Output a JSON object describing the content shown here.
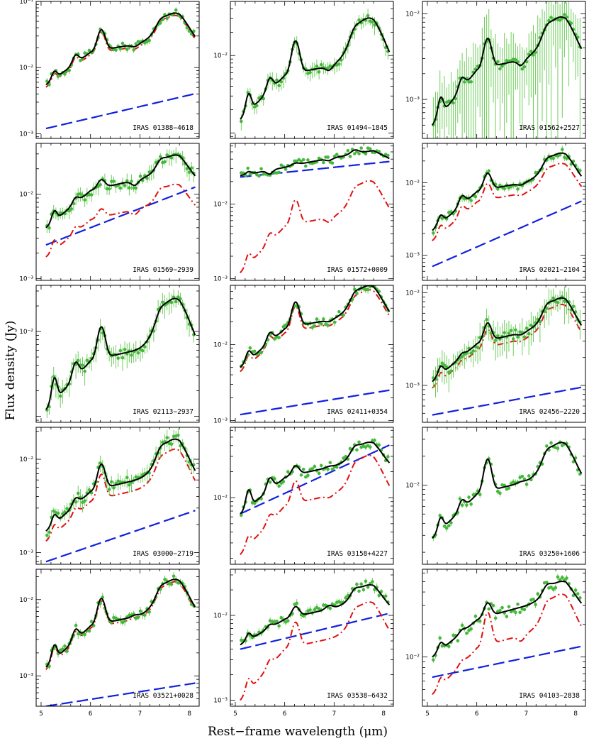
{
  "figure": {
    "ylabel": "Flux density (Jy)",
    "xlabel": "Rest−frame wavelength (μm)",
    "x_ticks": [
      "5",
      "6",
      "7",
      "8"
    ],
    "colors": {
      "data": "#44b83a",
      "total_model": "#000000",
      "pah_component": "#e01010",
      "continuum_component": "#1020e0"
    }
  },
  "chart_data": [
    {
      "type": "line",
      "label": "IRAS 01388−4618",
      "xlim": [
        4.9,
        8.2
      ],
      "ylim": [
        0.00085,
        0.1
      ],
      "yticks": [
        {
          "v": 0.001,
          "t": "10⁻³"
        },
        {
          "v": 0.01,
          "t": "10⁻²"
        },
        {
          "v": 0.1,
          "t": "10⁻¹"
        }
      ],
      "peaks": {
        "base": 0.014,
        "p62": 0.036,
        "p77": 0.065,
        "f52": 0.0075,
        "f57": 0.011,
        "start": 0.0055,
        "dip": 0.017
      },
      "err": 0.08,
      "has_pah": true,
      "pah_scale": 0.92,
      "cont": [
        0.0012,
        0.004
      ]
    },
    {
      "type": "line",
      "label": "IRAS 01494−1845",
      "xlim": [
        4.9,
        8.2
      ],
      "ylim": [
        0.00085,
        0.05
      ],
      "yticks": [
        {
          "v": 0.01,
          "t": "10⁻²"
        }
      ],
      "peaks": {
        "base": 0.004,
        "p62": 0.015,
        "p77": 0.03,
        "f52": 0.0028,
        "f57": 0.0035,
        "start": 0.0015,
        "dip": 0.0055
      },
      "err": 0.18,
      "has_pah": false,
      "cont": null
    },
    {
      "type": "line",
      "label": "IRAS 01562+2527",
      "xlim": [
        4.9,
        8.2
      ],
      "ylim": [
        0.00035,
        0.014
      ],
      "yticks": [
        {
          "v": 0.001,
          "t": "10⁻³"
        },
        {
          "v": 0.01,
          "t": "10⁻²"
        }
      ],
      "peaks": {
        "base": 0.0015,
        "p62": 0.005,
        "p77": 0.009,
        "f52": 0.0009,
        "f57": 0.0011,
        "start": 0.0005,
        "dip": 0.0022
      },
      "err": 0.9,
      "has_pah": false,
      "cont": null
    },
    {
      "type": "line",
      "label": "IRAS 01569−2939",
      "xlim": [
        4.9,
        8.2
      ],
      "ylim": [
        0.00095,
        0.04
      ],
      "yticks": [
        {
          "v": 0.001,
          "t": "10⁻³"
        },
        {
          "v": 0.01,
          "t": "10⁻²"
        }
      ],
      "peaks": {
        "base": 0.008,
        "p62": 0.014,
        "p77": 0.028,
        "f52": 0.0055,
        "f57": 0.0065,
        "start": 0.004,
        "dip": 0.011
      },
      "err": 0.15,
      "has_pah": true,
      "pah_scale": 0.45,
      "cont": [
        0.0025,
        0.012
      ]
    },
    {
      "type": "line",
      "label": "IRAS 01572+0009",
      "xlim": [
        4.9,
        8.2
      ],
      "ylim": [
        0.00095,
        0.065
      ],
      "yticks": [
        {
          "v": 0.001,
          "t": "10⁻³"
        },
        {
          "v": 0.01,
          "t": "10⁻²"
        }
      ],
      "peaks": {
        "base": 0.027,
        "p62": 0.033,
        "p77": 0.048,
        "f52": 0.026,
        "f57": 0.028,
        "start": 0.024,
        "dip": 0.031
      },
      "err": 0.03,
      "has_pah": true,
      "pah_scale": "custom",
      "pah": {
        "base": 0.0035,
        "p62": 0.011,
        "p77": 0.02,
        "f52": 0.0018,
        "f57": 0.0025,
        "start": 0.0012,
        "dip": 0.005
      },
      "cont": [
        0.023,
        0.037
      ]
    },
    {
      "type": "line",
      "label": "IRAS 02021−2104",
      "xlim": [
        4.9,
        8.2
      ],
      "ylim": [
        0.00045,
        0.035
      ],
      "yticks": [
        {
          "v": 0.001,
          "t": "10⁻³"
        },
        {
          "v": 0.01,
          "t": "10⁻²"
        }
      ],
      "peaks": {
        "base": 0.0065,
        "p62": 0.013,
        "p77": 0.025,
        "f52": 0.003,
        "f57": 0.0045,
        "start": 0.0022,
        "dip": 0.0075
      },
      "err": 0.1,
      "has_pah": true,
      "pah_scale": 0.72,
      "cont": [
        0.0007,
        0.0055
      ]
    },
    {
      "type": "line",
      "label": "IRAS 02113−2937",
      "xlim": [
        4.9,
        8.2
      ],
      "ylim": [
        0.00085,
        0.035
      ],
      "yticks": [
        {
          "v": 0.01,
          "t": "10⁻²"
        }
      ],
      "peaks": {
        "base": 0.0045,
        "p62": 0.011,
        "p77": 0.024,
        "f52": 0.0025,
        "f57": 0.003,
        "start": 0.0012,
        "dip": 0.0045
      },
      "err": 0.22,
      "has_pah": false,
      "cont": null
    },
    {
      "type": "line",
      "label": "IRAS 02411+0354",
      "xlim": [
        4.9,
        8.2
      ],
      "ylim": [
        0.00095,
        0.06
      ],
      "yticks": [
        {
          "v": 0.001,
          "t": "10⁻³"
        },
        {
          "v": 0.01,
          "t": "10⁻²"
        }
      ],
      "peaks": {
        "base": 0.014,
        "p62": 0.035,
        "p77": 0.058,
        "f52": 0.007,
        "f57": 0.01,
        "start": 0.005,
        "dip": 0.016
      },
      "err": 0.08,
      "has_pah": true,
      "pah_scale": 0.88,
      "cont": [
        0.0012,
        0.0025
      ]
    },
    {
      "type": "line",
      "label": "IRAS 02456−2220",
      "xlim": [
        4.9,
        8.2
      ],
      "ylim": [
        0.0004,
        0.012
      ],
      "yticks": [
        {
          "v": 0.001,
          "t": "10⁻³"
        },
        {
          "v": 0.01,
          "t": "10⁻²"
        }
      ],
      "peaks": {
        "base": 0.0025,
        "p62": 0.0045,
        "p77": 0.0085,
        "f52": 0.0014,
        "f57": 0.0016,
        "start": 0.0011,
        "dip": 0.0028
      },
      "err": 0.3,
      "has_pah": true,
      "pah_scale": 0.85,
      "cont": [
        0.00048,
        0.00095
      ]
    },
    {
      "type": "line",
      "label": "IRAS 03000−2719",
      "xlim": [
        4.9,
        8.2
      ],
      "ylim": [
        0.00075,
        0.022
      ],
      "yticks": [
        {
          "v": 0.001,
          "t": "10⁻³"
        },
        {
          "v": 0.01,
          "t": "10⁻²"
        }
      ],
      "peaks": {
        "base": 0.0045,
        "p62": 0.0085,
        "p77": 0.016,
        "f52": 0.0022,
        "f57": 0.0028,
        "start": 0.0017,
        "dip": 0.0045
      },
      "err": 0.15,
      "has_pah": true,
      "pah_scale": 0.78,
      "cont": [
        0.0008,
        0.0028
      ]
    },
    {
      "type": "line",
      "label": "IRAS 03158+4227",
      "xlim": [
        4.9,
        8.2
      ],
      "ylim": [
        0.0017,
        0.065
      ],
      "yticks": [
        {
          "v": 0.01,
          "t": "10⁻²"
        }
      ],
      "peaks": {
        "base": 0.018,
        "p62": 0.022,
        "p77": 0.042,
        "f52": 0.011,
        "f57": 0.013,
        "start": 0.0065,
        "dip": 0.017
      },
      "err": 0.06,
      "has_pah": true,
      "pah_scale": "custom",
      "pah": {
        "base": 0.007,
        "p62": 0.015,
        "p77": 0.03,
        "f52": 0.003,
        "f57": 0.004,
        "start": 0.0022,
        "dip": 0.008
      },
      "cont": [
        0.0065,
        0.04
      ]
    },
    {
      "type": "line",
      "label": "IRAS 03250+1606",
      "xlim": [
        4.9,
        8.2
      ],
      "ylim": [
        0.0015,
        0.04
      ],
      "yticks": [
        {
          "v": 0.01,
          "t": "10⁻²"
        }
      ],
      "peaks": {
        "base": 0.0085,
        "p62": 0.018,
        "p77": 0.027,
        "f52": 0.004,
        "f57": 0.005,
        "start": 0.0028,
        "dip": 0.008
      },
      "err": 0.06,
      "has_pah": false,
      "cont": null
    },
    {
      "type": "line",
      "label": "IRAS 03521+0028",
      "xlim": [
        4.9,
        8.2
      ],
      "ylim": [
        0.0004,
        0.025
      ],
      "yticks": [
        {
          "v": 0.001,
          "t": "10⁻³"
        },
        {
          "v": 0.01,
          "t": "10⁻²"
        }
      ],
      "peaks": {
        "base": 0.005,
        "p62": 0.01,
        "p77": 0.018,
        "f52": 0.0022,
        "f57": 0.0028,
        "start": 0.0013,
        "dip": 0.0045
      },
      "err": 0.1,
      "has_pah": true,
      "pah_scale": 0.93,
      "cont": [
        0.0004,
        0.0008
      ]
    },
    {
      "type": "line",
      "label": "IRAS 03538−6432",
      "xlim": [
        4.9,
        8.2
      ],
      "ylim": [
        0.00085,
        0.035
      ],
      "yticks": [
        {
          "v": 0.001,
          "t": "10⁻³"
        },
        {
          "v": 0.01,
          "t": "10⁻²"
        }
      ],
      "peaks": {
        "base": 0.011,
        "p62": 0.012,
        "p77": 0.022,
        "f52": 0.0055,
        "f57": 0.0065,
        "start": 0.0045,
        "dip": 0.009
      },
      "err": 0.08,
      "has_pah": true,
      "pah_scale": "custom",
      "pah": {
        "base": 0.004,
        "p62": 0.008,
        "p77": 0.014,
        "f52": 0.0015,
        "f57": 0.0018,
        "start": 0.001,
        "dip": 0.004
      },
      "cont": [
        0.004,
        0.0105
      ]
    },
    {
      "type": "line",
      "label": "IRAS 04103−2838",
      "xlim": [
        4.9,
        8.2
      ],
      "ylim": [
        0.0035,
        0.065
      ],
      "yticks": [
        {
          "v": 0.01,
          "t": "10⁻²"
        }
      ],
      "peaks": {
        "base": 0.022,
        "p62": 0.03,
        "p77": 0.048,
        "f52": 0.012,
        "f57": 0.014,
        "start": 0.01,
        "dip": 0.022
      },
      "err": 0.05,
      "has_pah": true,
      "pah_scale": "custom",
      "pah": {
        "base": 0.009,
        "p62": 0.025,
        "p77": 0.037,
        "f52": 0.0055,
        "f57": 0.0065,
        "start": 0.0045,
        "dip": 0.012
      },
      "cont": [
        0.0065,
        0.0125
      ]
    }
  ]
}
